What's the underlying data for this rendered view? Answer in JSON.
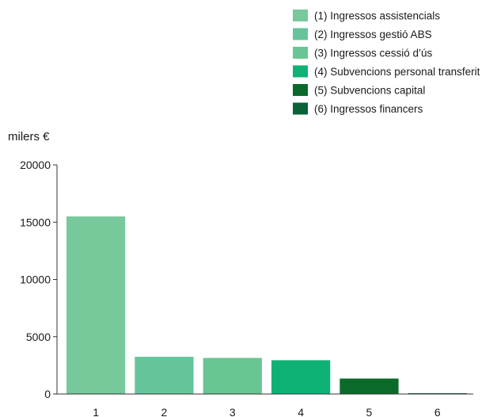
{
  "chart_data": {
    "type": "bar",
    "ylabel": "milers €",
    "categories": [
      "1",
      "2",
      "3",
      "4",
      "5",
      "6"
    ],
    "values": [
      15500,
      3250,
      3150,
      2950,
      1350,
      60
    ],
    "colors": [
      "#77c89a",
      "#66c49b",
      "#69c593",
      "#0fb275",
      "#0a6a2a",
      "#0b6238"
    ],
    "ylim": [
      0,
      20000
    ],
    "yticks": [
      0,
      5000,
      10000,
      15000,
      20000
    ],
    "grid": false,
    "legend_position": "top-right",
    "legend": [
      {
        "label": "(1) Ingressos assistencials",
        "color": "#77c89a"
      },
      {
        "label": "(2) Ingressos gestió ABS",
        "color": "#66c49b"
      },
      {
        "label": "(3) Ingressos cessió d’ús",
        "color": "#69c593"
      },
      {
        "label": "(4) Subvencions personal transferit",
        "color": "#0fb275"
      },
      {
        "label": "(5) Subvencions capital",
        "color": "#0a6a2a"
      },
      {
        "label": "(6) Ingressos financers",
        "color": "#0b6238"
      }
    ]
  }
}
